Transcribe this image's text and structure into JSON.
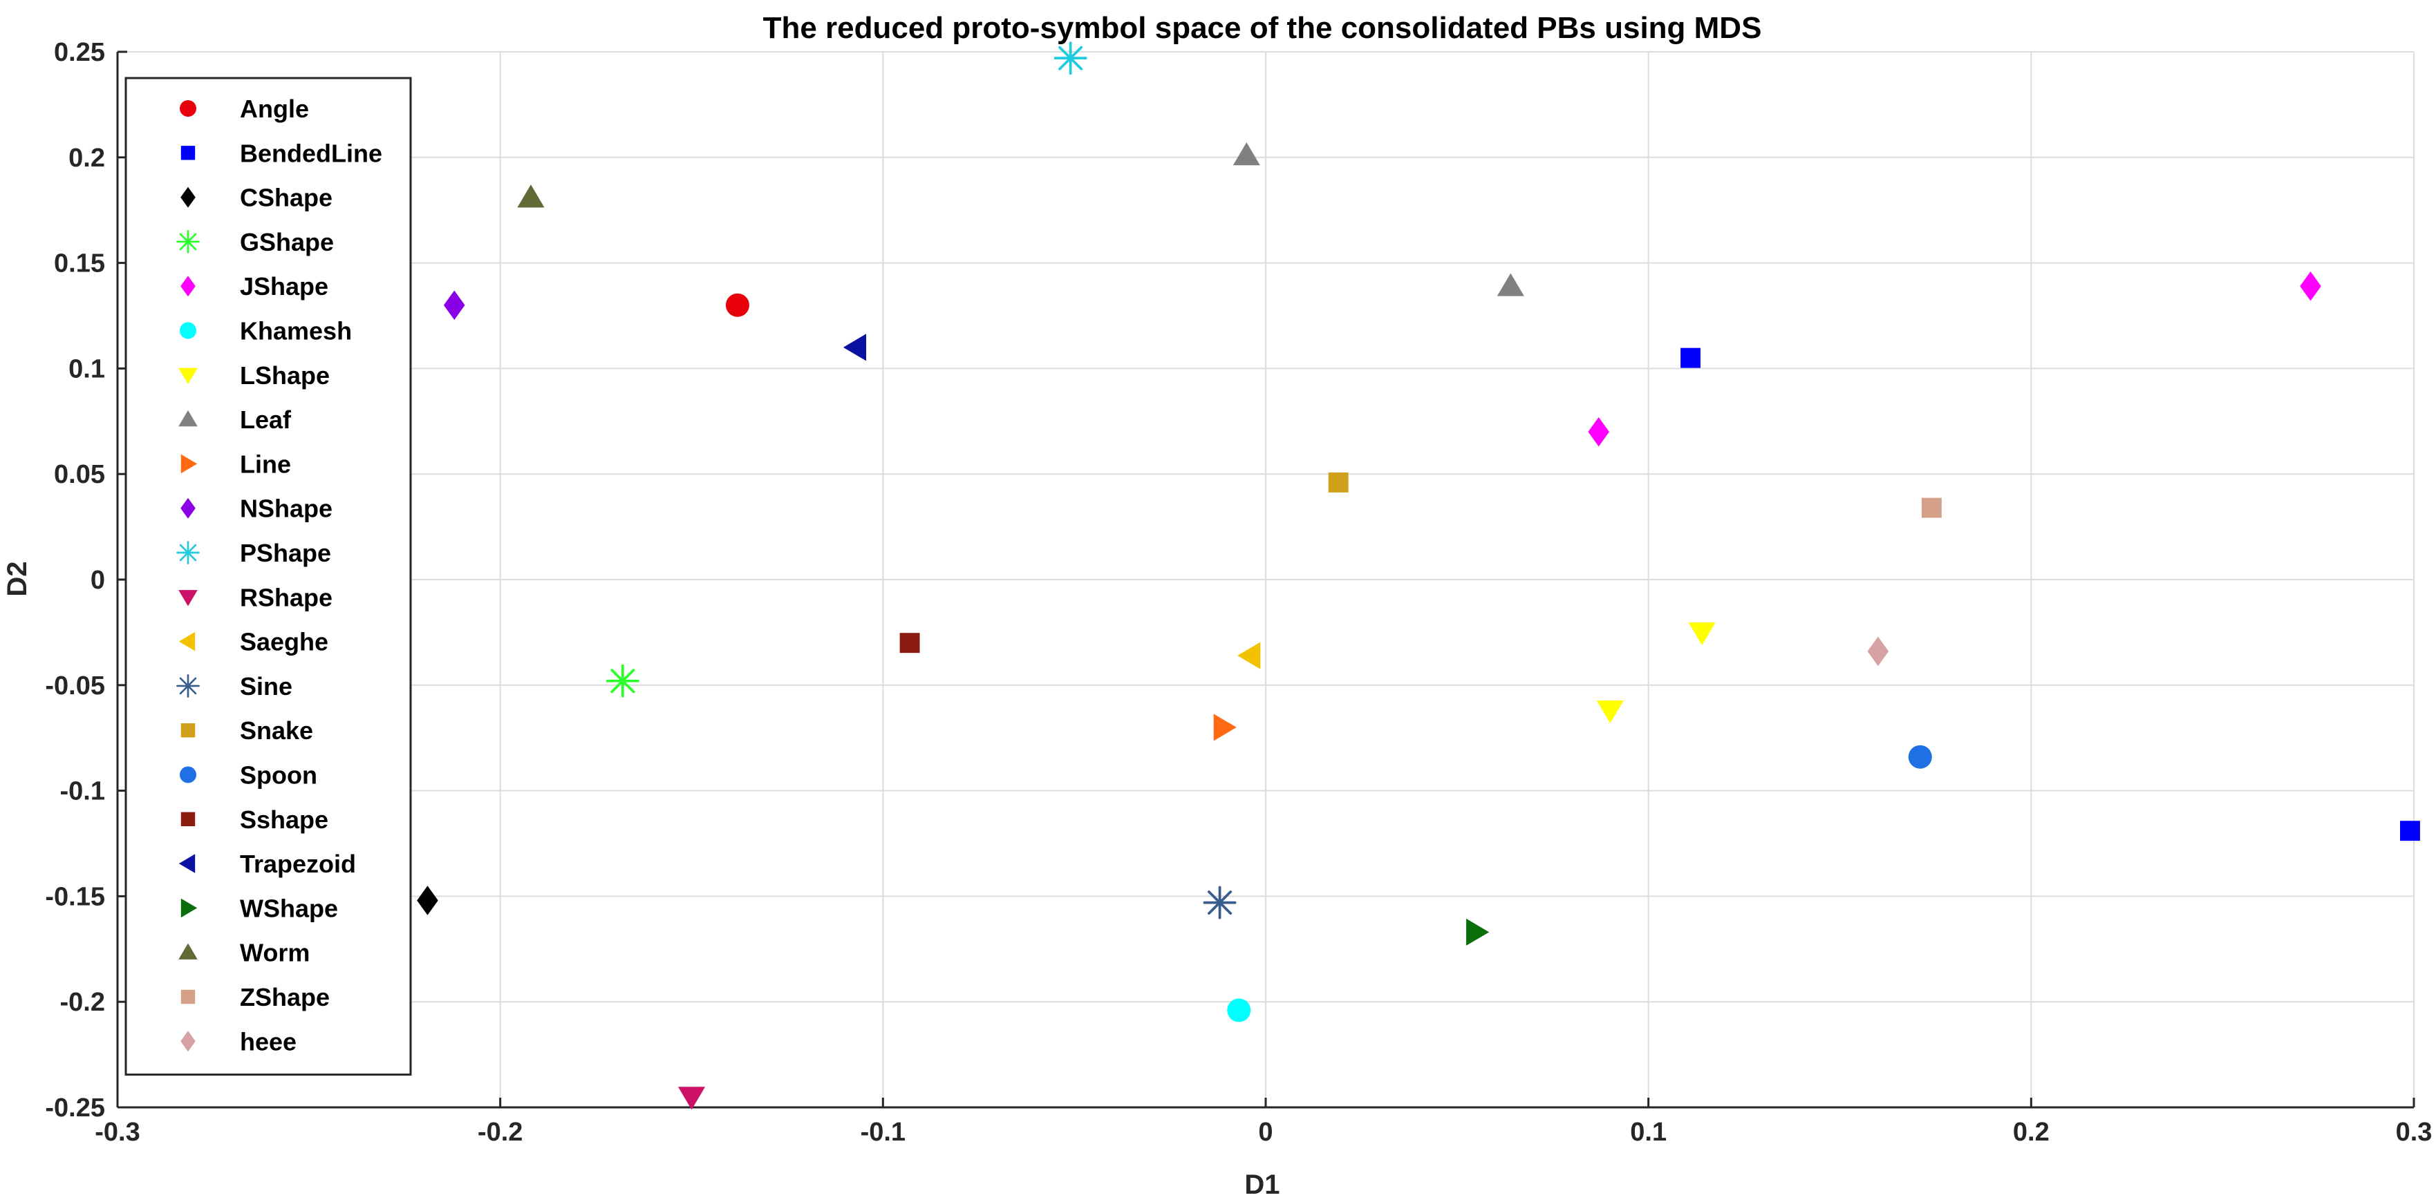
{
  "chart_data": {
    "type": "scatter",
    "title": "The reduced proto-symbol space of the consolidated PBs using MDS",
    "xlabel": "D1",
    "ylabel": "D2",
    "xlim": [
      -0.3,
      0.3
    ],
    "ylim": [
      -0.25,
      0.25
    ],
    "xticks": [
      -0.3,
      -0.2,
      -0.1,
      0,
      0.1,
      0.2,
      0.3
    ],
    "xtick_labels": [
      "-0.3",
      "-0.2",
      "-0.1",
      "0",
      "0.1",
      "0.2",
      "0.3"
    ],
    "yticks": [
      0.25,
      0.2,
      0.15,
      0.1,
      0.05,
      0,
      -0.05,
      -0.1,
      -0.15,
      -0.2,
      -0.25
    ],
    "ytick_labels": [
      "0.25",
      "0.2",
      "0.15",
      "0.1",
      "0.05",
      "0",
      "-0.05",
      "-0.1",
      "-0.15",
      "-0.2",
      "-0.25"
    ],
    "grid": true,
    "legend_position": "top-left",
    "series": [
      {
        "name": "Angle",
        "marker": "circle",
        "color": "#e8000b",
        "points": [
          [
            -0.138,
            0.13
          ]
        ]
      },
      {
        "name": "BendedLine",
        "marker": "square",
        "color": "#0000ff",
        "points": [
          [
            0.111,
            0.105
          ],
          [
            0.299,
            -0.119
          ]
        ]
      },
      {
        "name": "CShape",
        "marker": "diamond",
        "color": "#000000",
        "points": [
          [
            -0.219,
            -0.152
          ]
        ]
      },
      {
        "name": "GShape",
        "marker": "asterisk",
        "color": "#2aff2a",
        "points": [
          [
            -0.168,
            -0.048
          ]
        ]
      },
      {
        "name": "JShape",
        "marker": "diamond",
        "color": "#ff00ff",
        "points": [
          [
            0.087,
            0.07
          ],
          [
            0.273,
            0.139
          ]
        ]
      },
      {
        "name": "Khamesh",
        "marker": "circle",
        "color": "#00ffff",
        "points": [
          [
            -0.007,
            -0.204
          ]
        ]
      },
      {
        "name": "LShape",
        "marker": "triangle-down",
        "color": "#ffff00",
        "points": [
          [
            0.09,
            -0.062
          ],
          [
            0.114,
            -0.025
          ]
        ]
      },
      {
        "name": "Leaf",
        "marker": "triangle-up",
        "color": "#808080",
        "points": [
          [
            -0.005,
            0.201
          ],
          [
            0.064,
            0.139
          ]
        ]
      },
      {
        "name": "Line",
        "marker": "triangle-right",
        "color": "#ff6a13",
        "points": [
          [
            -0.011,
            -0.07
          ]
        ]
      },
      {
        "name": "NShape",
        "marker": "diamond",
        "color": "#8a00e6",
        "points": [
          [
            -0.212,
            0.13
          ]
        ]
      },
      {
        "name": "PShape",
        "marker": "asterisk",
        "color": "#1ecbe1",
        "points": [
          [
            -0.051,
            0.247
          ]
        ]
      },
      {
        "name": "RShape",
        "marker": "triangle-down",
        "color": "#cc1166",
        "points": [
          [
            -0.15,
            -0.245
          ]
        ]
      },
      {
        "name": "Saeghe",
        "marker": "triangle-left",
        "color": "#f2c200",
        "points": [
          [
            -0.004,
            -0.036
          ]
        ]
      },
      {
        "name": "Sine",
        "marker": "asterisk",
        "color": "#3a5c8c",
        "points": [
          [
            -0.012,
            -0.153
          ]
        ]
      },
      {
        "name": "Snake",
        "marker": "square",
        "color": "#d1a019",
        "points": [
          [
            0.019,
            0.046
          ]
        ]
      },
      {
        "name": "Spoon",
        "marker": "circle",
        "color": "#1f6fe5",
        "points": [
          [
            0.171,
            -0.084
          ]
        ]
      },
      {
        "name": "Sshape",
        "marker": "square",
        "color": "#8b1a10",
        "points": [
          [
            -0.093,
            -0.03
          ]
        ]
      },
      {
        "name": "Trapezoid",
        "marker": "triangle-left",
        "color": "#0a10a0",
        "points": [
          [
            -0.107,
            0.11
          ]
        ]
      },
      {
        "name": "WShape",
        "marker": "triangle-right",
        "color": "#0a6e0a",
        "points": [
          [
            0.055,
            -0.167
          ]
        ]
      },
      {
        "name": "Worm",
        "marker": "triangle-up",
        "color": "#5f6a37",
        "points": [
          [
            -0.192,
            0.181
          ]
        ]
      },
      {
        "name": "ZShape",
        "marker": "square",
        "color": "#d4a088",
        "points": [
          [
            0.174,
            0.034
          ]
        ]
      },
      {
        "name": "heee",
        "marker": "diamond",
        "color": "#d6a2a2",
        "points": [
          [
            0.16,
            -0.034
          ]
        ]
      }
    ]
  }
}
